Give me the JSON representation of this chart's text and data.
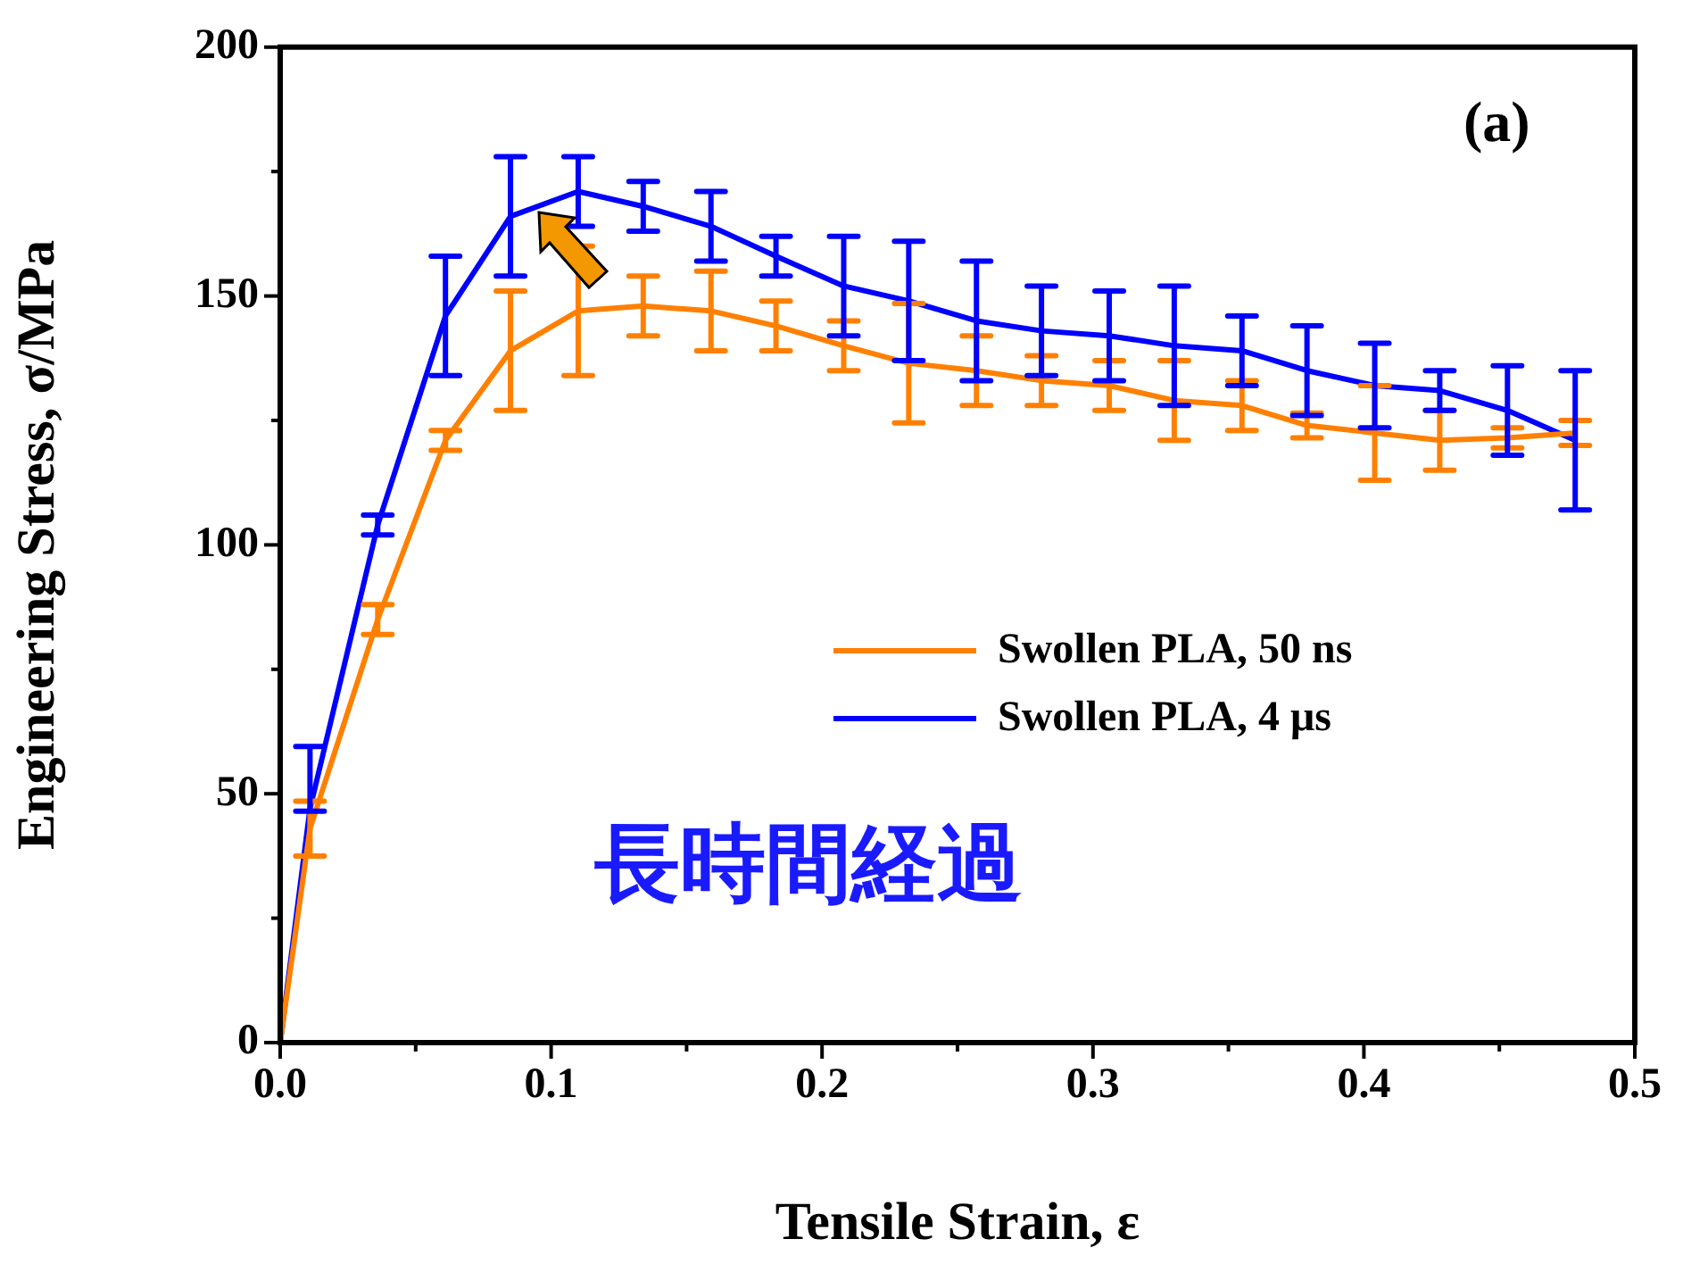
{
  "chart_data": {
    "type": "line",
    "xlabel": "Tensile Strain, ε",
    "ylabel": "Engineering Stress, σ/MPa",
    "x": [
      0,
      0.011,
      0.036,
      0.061,
      0.085,
      0.11,
      0.134,
      0.159,
      0.183,
      0.208,
      0.232,
      0.257,
      0.281,
      0.306,
      0.33,
      0.355,
      0.379,
      0.404,
      0.428,
      0.453,
      0.478
    ],
    "series": [
      {
        "name": "Swollen PLA, 50 ns",
        "color": "#ff8000",
        "values": [
          0,
          43,
          85,
          121,
          139,
          147,
          148,
          147,
          144,
          140,
          136.5,
          135,
          133,
          132,
          129,
          128,
          124,
          122.5,
          121,
          121.5,
          122.5
        ],
        "errors": [
          null,
          5.5,
          3,
          2,
          12,
          13,
          6,
          8,
          5,
          5,
          12,
          7,
          5,
          5,
          8,
          5,
          2.5,
          9.5,
          6,
          2,
          2.5
        ]
      },
      {
        "name": "Swollen PLA, 4 μs",
        "color": "#0000ff",
        "values": [
          0,
          47,
          104,
          146,
          166,
          171,
          168,
          164,
          158,
          152,
          149,
          145,
          143,
          142,
          140,
          139,
          135,
          132,
          131,
          127,
          121
        ],
        "errors": [
          null,
          [
            46.5,
            59.5
          ],
          2,
          12,
          12,
          7,
          5,
          7,
          4,
          10,
          12,
          12,
          9,
          9,
          12,
          7,
          9,
          8.5,
          4,
          9,
          14
        ]
      }
    ],
    "xlim": [
      0,
      0.5
    ],
    "xticks": [
      {
        "value": 0,
        "label": "0.0"
      },
      {
        "value": 0.05,
        "label": null
      },
      {
        "value": 0.1,
        "label": "0.1"
      },
      {
        "value": 0.15,
        "label": null
      },
      {
        "value": 0.2,
        "label": "0.2"
      },
      {
        "value": 0.25,
        "label": null
      },
      {
        "value": 0.3,
        "label": "0.3"
      },
      {
        "value": 0.35,
        "label": null
      },
      {
        "value": 0.4,
        "label": "0.4"
      },
      {
        "value": 0.45,
        "label": null
      },
      {
        "value": 0.5,
        "label": "0.5"
      }
    ],
    "ylim": [
      0,
      200
    ],
    "yticks": [
      0,
      {
        "value": 25,
        "label": null
      },
      50,
      {
        "value": 75,
        "label": null
      },
      100,
      {
        "value": 125,
        "label": null
      },
      150,
      {
        "value": 175,
        "label": null
      },
      200
    ],
    "annotations": [
      "(a)",
      "長時間経過"
    ],
    "legend": "center right",
    "grid": false,
    "marker": "none",
    "line_style": "solid"
  }
}
